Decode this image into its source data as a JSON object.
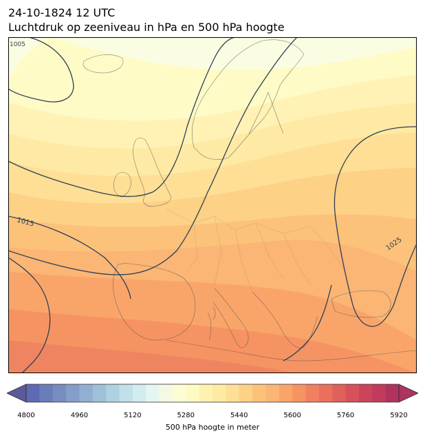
{
  "title": {
    "line1": "24-10-1824 12 UTC",
    "line2": "Luchtdruk op zeeniveau in hPa en 500 hPa hoogte"
  },
  "map": {
    "region": "Europe",
    "isobar_labels": [
      "1005",
      "1015",
      "1025"
    ],
    "fill_colors": [
      "#fbfde2",
      "#fefbc7",
      "#fff2b4",
      "#feeaa4",
      "#fedf95",
      "#fdd186",
      "#fcc27a",
      "#fbb574",
      "#f9a56a",
      "#f69362",
      "#ef8560"
    ]
  },
  "colorbar": {
    "label": "500 hPa hoogte in meter",
    "min": 4800,
    "max": 5990,
    "step": 40,
    "ticks": [
      "4800",
      "4960",
      "5120",
      "5280",
      "5440",
      "5600",
      "5760",
      "5920"
    ],
    "extend": "both",
    "colors": [
      "#5e6ab3",
      "#6a7cba",
      "#778dc1",
      "#849ec9",
      "#91afd0",
      "#9fc0d8",
      "#afd2e2",
      "#c0e0ea",
      "#d2ecef",
      "#e5f5ef",
      "#f3f9e2",
      "#fcfdd2",
      "#fffac2",
      "#fff1b0",
      "#feeaa2",
      "#fedf95",
      "#fdd186",
      "#fcc27a",
      "#fbb574",
      "#f9a56a",
      "#f69362",
      "#f08060",
      "#e9705d",
      "#e0605b",
      "#d6515b",
      "#cc445c",
      "#c03b5e",
      "#b2325e"
    ],
    "low_color": "#5a5a9c",
    "high_color": "#ad3360"
  }
}
